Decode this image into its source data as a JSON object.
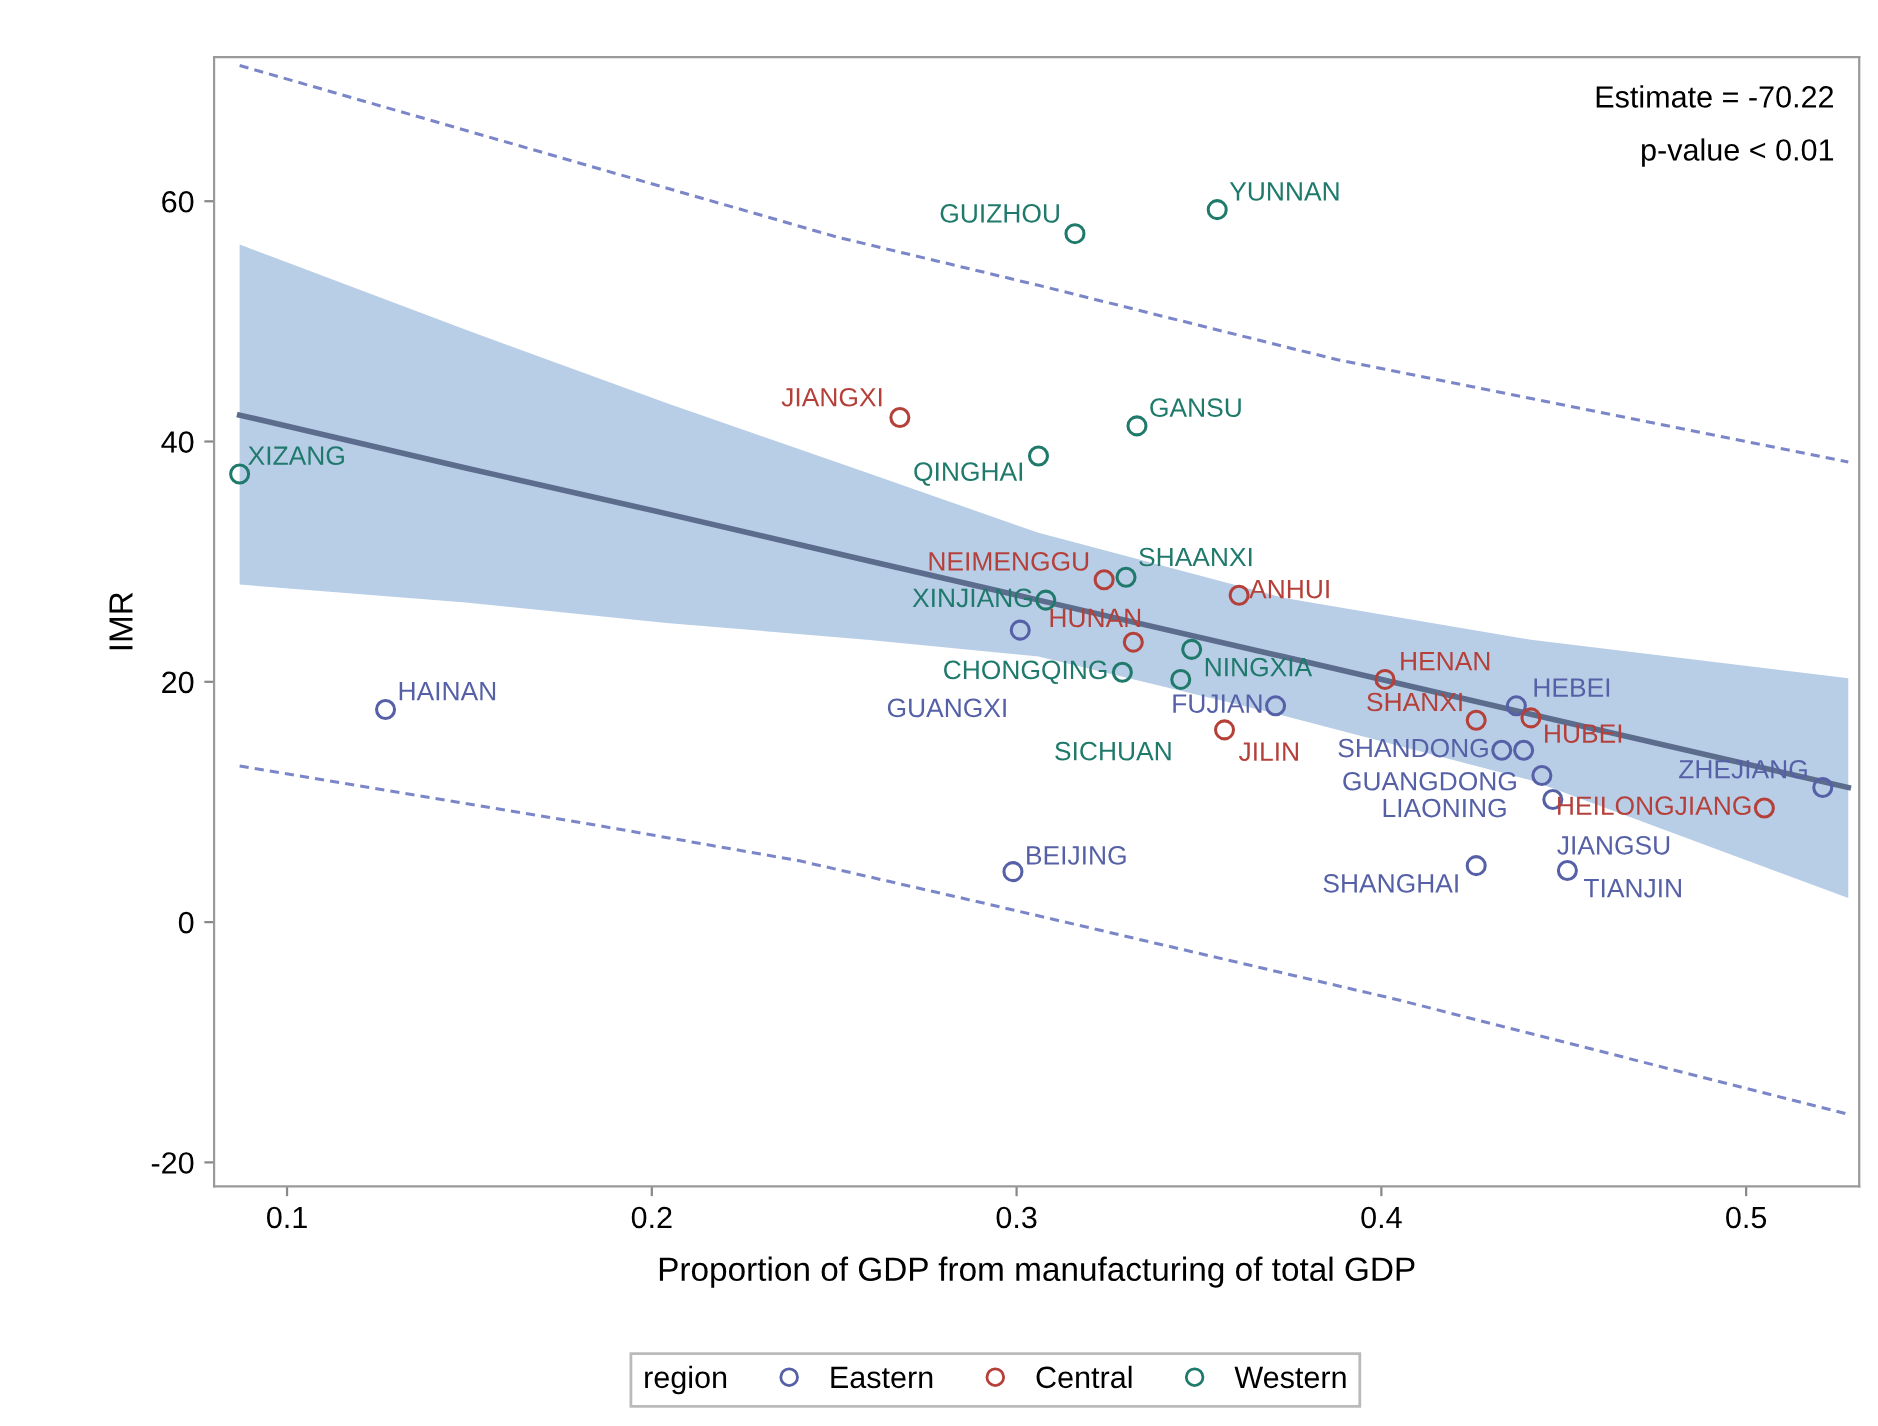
{
  "chart_data": {
    "type": "scatter",
    "xlabel": "Proportion of GDP from manufacturing of total GDP",
    "ylabel": "IMR",
    "legend_title": "region",
    "legend": "bottom",
    "grid": false,
    "marker": "circle",
    "xlim": [
      0.08,
      0.531
    ],
    "ylim": [
      -22,
      72
    ],
    "xticks": [
      0.1,
      0.2,
      0.3,
      0.4,
      0.5
    ],
    "yticks": [
      -20,
      0,
      20,
      40,
      60
    ],
    "annotations": [
      "Estimate = -70.22",
      "p-value < 0.01"
    ],
    "series": [
      {
        "name": "Eastern",
        "color": "#5560a6",
        "x": [
          0.127,
          0.301,
          0.371,
          0.299,
          0.426,
          0.451,
          0.437,
          0.433,
          0.439,
          0.444,
          0.447,
          0.521
        ],
        "values": [
          17.7,
          24.3,
          18.0,
          4.2,
          4.7,
          4.3,
          18.0,
          14.3,
          14.3,
          12.2,
          10.2,
          11.2
        ],
        "value_labels": [
          "HAINAN",
          "GUANGXI",
          "FUJIAN",
          "BEIJING",
          "SHANGHAI",
          "TIANJIN",
          "HEBEI",
          "SHANDONG",
          "LIAONING",
          "GUANGDONG",
          "JIANGSU",
          "ZHEJIANG"
        ]
      },
      {
        "name": "Central",
        "color": "#b5403a",
        "x": [
          0.268,
          0.324,
          0.361,
          0.332,
          0.401,
          0.357,
          0.426,
          0.441,
          0.505
        ],
        "values": [
          42.0,
          28.5,
          27.2,
          23.3,
          20.2,
          16.0,
          16.8,
          17.0,
          9.5
        ],
        "value_labels": [
          "JIANGXI",
          "NEIMENGGU",
          "ANHUI",
          "HUNAN",
          "HENAN",
          "JILIN",
          "SHANXI",
          "HUBEI",
          "HEILONGJIANG"
        ]
      },
      {
        "name": "Western",
        "color": "#1f7a6c",
        "x": [
          0.087,
          0.316,
          0.355,
          0.333,
          0.306,
          0.33,
          0.308,
          0.348,
          0.329,
          0.345
        ],
        "values": [
          37.3,
          57.3,
          59.3,
          41.3,
          38.8,
          28.7,
          26.8,
          22.7,
          20.8,
          20.2
        ],
        "value_labels": [
          "XIZANG",
          "GUIZHOU",
          "YUNNAN",
          "GANSU",
          "QINGHAI",
          "SHAANXI",
          "XINJIANG",
          "NINGXIA",
          "CHONGQING",
          "SICHUAN"
        ]
      },
      {
        "type": "line",
        "color": "#5b6c8c",
        "line_style": "solid",
        "marker": "none",
        "x": [
          0.087,
          0.149,
          0.204,
          0.259,
          0.306,
          0.373,
          0.441,
          0.528
        ],
        "values": [
          42.2,
          37.8,
          34.0,
          30.1,
          26.8,
          22.1,
          17.3,
          11.2
        ],
        "lower": [
          28.1,
          26.6,
          24.9,
          23.5,
          22.1,
          17.2,
          11.8,
          2.0
        ],
        "upper": [
          56.4,
          49.3,
          43.2,
          37.4,
          32.4,
          27.0,
          23.5,
          20.3
        ]
      },
      {
        "type": "line",
        "color": "#7b86c9",
        "line_style": "dashed",
        "marker": "none",
        "x": [
          0.087,
          0.251,
          0.306,
          0.388,
          0.528
        ],
        "values": [
          71.3,
          57.0,
          53.0,
          46.8,
          38.3
        ]
      },
      {
        "type": "line",
        "color": "#7b86c9",
        "line_style": "dashed",
        "marker": "none",
        "x": [
          0.087,
          0.186,
          0.2405,
          0.295,
          0.405,
          0.528
        ],
        "values": [
          13.0,
          8.0,
          5.1,
          1.3,
          -6.5,
          -16.0
        ]
      }
    ]
  }
}
